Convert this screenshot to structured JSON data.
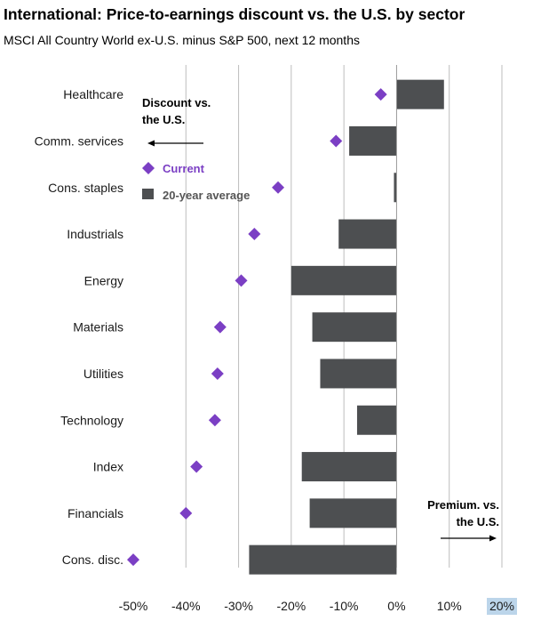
{
  "title": "International: Price-to-earnings discount vs. the U.S. by sector",
  "subtitle": "MSCI All Country World ex-U.S. minus S&P 500, next 12 months",
  "colors": {
    "current": "#7b3fc4",
    "average": "#4d4f51",
    "grid": "#bdbdbd",
    "highlight": "#bcd5ea"
  },
  "chart_data": {
    "type": "bar",
    "orientation": "horizontal",
    "categories": [
      "Healthcare",
      "Comm. services",
      "Cons. staples",
      "Industrials",
      "Energy",
      "Materials",
      "Utilities",
      "Technology",
      "Index",
      "Financials",
      "Cons. disc."
    ],
    "series": [
      {
        "name": "20-year average",
        "mark": "bar",
        "values": [
          9,
          -9,
          -0.5,
          -11,
          -20,
          -16,
          -14.5,
          -7.5,
          -18,
          -16.5,
          -28
        ]
      },
      {
        "name": "Current",
        "mark": "diamond",
        "values": [
          -3,
          -11.5,
          -22.5,
          -27,
          -29.5,
          -33.5,
          -34,
          -34.5,
          -38,
          -40,
          -50
        ]
      }
    ],
    "xlim": [
      -50,
      20
    ],
    "xticks": [
      "-50%",
      "-40%",
      "-30%",
      "-20%",
      "-10%",
      "0%",
      "10%",
      "20%"
    ],
    "highlighted_tick": "20%",
    "grid": "vertical",
    "legend": {
      "placement": "top-left",
      "current_label": "Current",
      "average_label": "20-year average"
    },
    "annotations": {
      "discount": [
        "Discount  vs.",
        "the U.S."
      ],
      "premium": [
        "Premium. vs.",
        "the U.S."
      ]
    }
  }
}
